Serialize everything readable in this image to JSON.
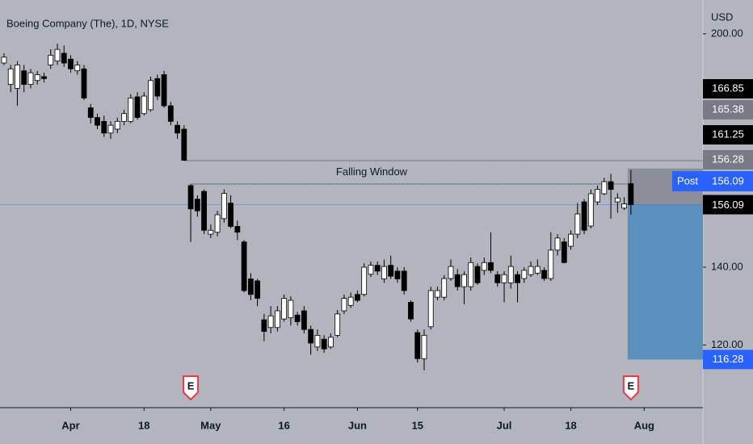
{
  "chart_data": {
    "type": "candlestick",
    "title": "Boeing Company (The), 1D, NYSE",
    "axis_unit": "USD",
    "annotation": "Falling Window",
    "up_color": "#ffffff",
    "down_color": "#000000",
    "open": [
      192.5,
      187,
      186,
      190.5,
      187,
      188,
      189,
      192,
      193,
      195,
      193.5,
      190.5,
      191,
      181,
      178.5,
      177.5,
      174.5,
      175.5,
      177.5,
      177.5,
      183.8,
      179.5,
      180.5,
      188.5,
      189.5,
      181.5,
      176.5,
      175.5,
      161,
      157.5,
      159.5,
      148.5,
      149,
      152.5,
      156.5,
      150.5,
      146.5,
      137,
      136.5,
      126.5,
      124.5,
      124.5,
      126.7,
      127,
      127.7,
      128.8,
      124,
      119.5,
      121.5,
      119.5,
      122.5,
      128.8,
      130.2,
      133,
      133,
      138.2,
      140.5,
      137,
      140.5,
      139,
      139,
      131,
      123.2,
      116.5,
      124.7,
      132.3,
      132.3,
      137.1,
      138.1,
      135,
      135,
      140.2,
      139.2,
      141.2,
      138.1,
      136,
      136,
      138.1,
      137.1,
      138.1,
      138.5,
      139.2,
      137.1,
      144.4,
      146.5,
      145.4,
      148.5,
      156.8,
      150.6,
      156.8,
      158.9,
      162,
      156.8,
      155.2,
      161.5
    ],
    "high": [
      195,
      192,
      193,
      192,
      191,
      190.5,
      190,
      196,
      197.5,
      197,
      194.5,
      193,
      192,
      182,
      179.5,
      179,
      177.5,
      178.5,
      180.5,
      184.5,
      185,
      185,
      189,
      189.5,
      190.5,
      182.5,
      177.5,
      176.5,
      161.4,
      158.5,
      160,
      151,
      154.5,
      160,
      158.5,
      152,
      147,
      138.5,
      137,
      128,
      130,
      130,
      133,
      132.5,
      128.5,
      130,
      125,
      124,
      122.5,
      123,
      129,
      133,
      133.5,
      134,
      141,
      141.5,
      141.5,
      142,
      143,
      140,
      140,
      131.5,
      124,
      124,
      135,
      135,
      138,
      142,
      139.5,
      139,
      142.5,
      141,
      142.5,
      149,
      139,
      139,
      143,
      139,
      140,
      141.5,
      142,
      140,
      149,
      148.5,
      147.5,
      149.5,
      156.5,
      157.5,
      160,
      161,
      163,
      164,
      159,
      158,
      165
    ],
    "low": [
      192,
      185,
      181.5,
      185,
      186,
      187,
      187.5,
      191,
      192,
      191.5,
      190,
      189.5,
      183,
      177,
      175.5,
      173.5,
      173,
      174.5,
      176.5,
      177,
      178,
      179,
      180,
      183,
      181,
      176.5,
      173,
      167.4,
      146.5,
      153,
      148.5,
      147.5,
      148,
      151.5,
      150,
      147,
      133.5,
      131.5,
      130,
      121,
      123,
      123.5,
      126,
      125,
      125,
      123,
      117.5,
      118.5,
      118,
      119,
      122,
      128,
      129.5,
      131,
      132.5,
      137.5,
      138,
      136,
      137,
      136,
      133,
      126,
      115.5,
      113.5,
      124,
      131.5,
      131.5,
      136.5,
      134,
      130.5,
      134,
      135.5,
      138,
      138.5,
      135,
      131,
      134.5,
      131,
      136,
      137.5,
      138,
      136.5,
      136.5,
      143,
      141,
      144.5,
      147.5,
      148.5,
      150,
      156,
      158.5,
      152.5,
      154,
      154.7,
      153.5
    ],
    "close": [
      194,
      191,
      192,
      187,
      190,
      189.5,
      188.5,
      194.5,
      196,
      192.5,
      191,
      192,
      183.5,
      178.5,
      176.5,
      174.5,
      176.5,
      177.5,
      179.5,
      183.5,
      178.5,
      184,
      188,
      184,
      181.5,
      177.5,
      174.5,
      167.5,
      155,
      154.5,
      149.5,
      149.5,
      153.5,
      159,
      150.5,
      149,
      134,
      133,
      132,
      123.5,
      127.5,
      128.8,
      132,
      131.5,
      126,
      124,
      120.5,
      122.5,
      119,
      122,
      128,
      132,
      132.3,
      131.5,
      140,
      140.5,
      139,
      140.2,
      137.7,
      137,
      134,
      126.7,
      116.5,
      122.5,
      134,
      134,
      137.1,
      140.2,
      135,
      138.1,
      141.2,
      136,
      141.2,
      139.2,
      136,
      138.1,
      140.2,
      136,
      139.2,
      140.2,
      140.2,
      137.1,
      144.4,
      147.5,
      141.2,
      148.5,
      153.7,
      149.5,
      158.9,
      160,
      162,
      160,
      157.8,
      156.3,
      156.09
    ],
    "xlim": [
      -0.6,
      104.8
    ],
    "xticks": [
      {
        "value": 10,
        "label": "Apr"
      },
      {
        "value": 21,
        "label": "18"
      },
      {
        "value": 31,
        "label": "May"
      },
      {
        "value": 42,
        "label": "16"
      },
      {
        "value": 53,
        "label": "Jun"
      },
      {
        "value": 62,
        "label": "15"
      },
      {
        "value": 75,
        "label": "Jul"
      },
      {
        "value": 85,
        "label": "18"
      },
      {
        "value": 96,
        "label": "Aug"
      }
    ],
    "ylim": [
      103.9,
      208.7
    ],
    "yticks": [
      {
        "value": 120,
        "label": "120.00"
      },
      {
        "value": 140,
        "label": "140.00"
      },
      {
        "value": 200,
        "label": "200.00"
      }
    ],
    "price_tags": [
      166.85,
      165.38,
      161.25,
      156.28
    ],
    "price_tag_colors": [
      "#000000",
      "#787b86",
      "#000000",
      "#787b86"
    ],
    "post_label": "Post",
    "post_price": 156.09,
    "target": 116.28,
    "earnings_label": "E",
    "earnings_at": [
      28,
      94
    ]
  }
}
